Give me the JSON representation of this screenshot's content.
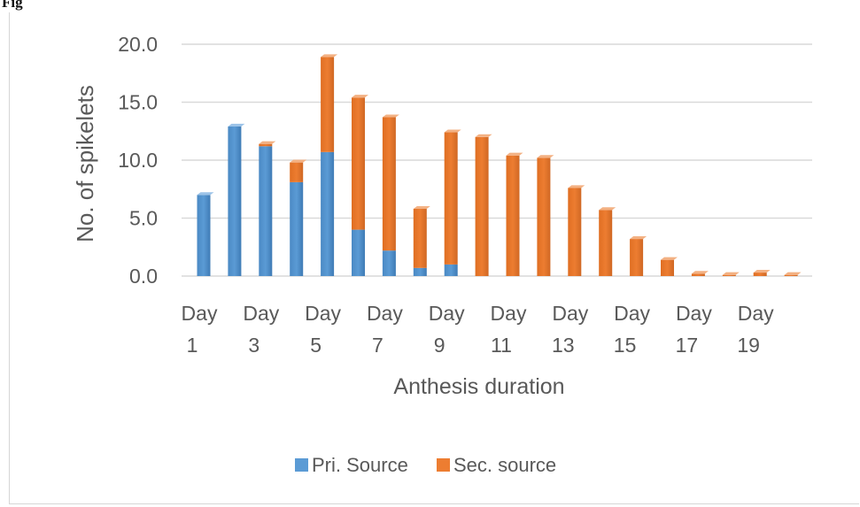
{
  "caption": "Fig",
  "chart_data": {
    "type": "bar",
    "stacked": true,
    "categories": [
      "Day 1",
      "Day 2",
      "Day 3",
      "Day 4",
      "Day 5",
      "Day 6",
      "Day 7",
      "Day 8",
      "Day 9",
      "Day 10",
      "Day 11",
      "Day 12",
      "Day 13",
      "Day 14",
      "Day 15",
      "Day 16",
      "Day 17",
      "Day 18",
      "Day 19",
      "Day 20"
    ],
    "shown_tick_labels": [
      {
        "line1": "Day",
        "line2": "1"
      },
      {
        "line1": "Day",
        "line2": "3"
      },
      {
        "line1": "Day",
        "line2": "5"
      },
      {
        "line1": "Day",
        "line2": "7"
      },
      {
        "line1": "Day",
        "line2": "9"
      },
      {
        "line1": "Day",
        "line2": "11"
      },
      {
        "line1": "Day",
        "line2": "13"
      },
      {
        "line1": "Day",
        "line2": "15"
      },
      {
        "line1": "Day",
        "line2": "17"
      },
      {
        "line1": "Day",
        "line2": "19"
      }
    ],
    "series": [
      {
        "name": "Pri. Source",
        "color": "#5b9bd5",
        "values": [
          7.0,
          12.9,
          11.2,
          8.1,
          10.7,
          4.0,
          2.2,
          0.7,
          1.0,
          0,
          0,
          0,
          0,
          0,
          0,
          0,
          0,
          0,
          0,
          0
        ]
      },
      {
        "name": "Sec. source",
        "color": "#ed7d31",
        "values": [
          0,
          0,
          0.2,
          1.7,
          8.2,
          11.4,
          11.5,
          5.1,
          11.4,
          12.0,
          10.4,
          10.2,
          7.6,
          5.7,
          3.2,
          1.4,
          0.2,
          0.1,
          0.3,
          0.1
        ]
      }
    ],
    "ylabel": "No. of spikelets",
    "xlabel": "Anthesis duration",
    "ylim": [
      0,
      20
    ],
    "yticks": [
      "0.0",
      "5.0",
      "10.0",
      "15.0",
      "20.0"
    ],
    "grid": true,
    "legend_position": "bottom"
  }
}
